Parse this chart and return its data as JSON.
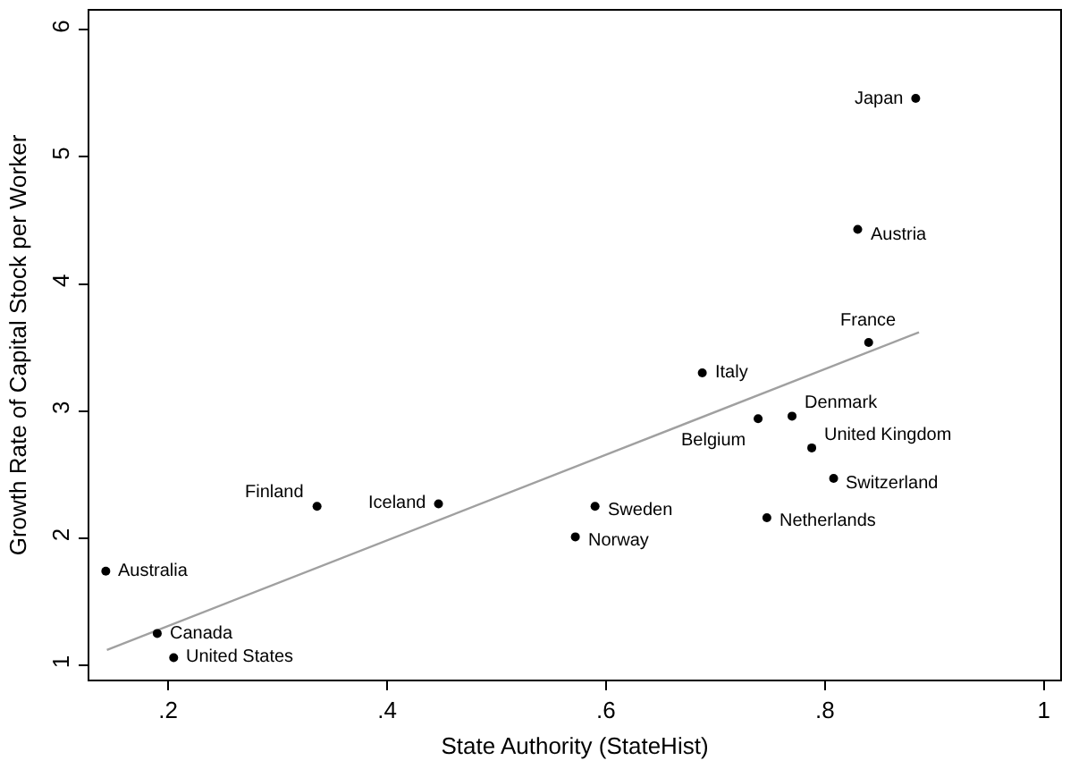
{
  "chart_data": {
    "type": "scatter",
    "xlabel": "State Authority (StateHist)",
    "ylabel": "Growth Rate of Capital Stock per Worker",
    "xlim": [
      0.128,
      1.015
    ],
    "ylim": [
      0.887,
      6.15
    ],
    "xticks": [
      {
        "value": 0.2,
        "label": ".2"
      },
      {
        "value": 0.4,
        "label": ".4"
      },
      {
        "value": 0.6,
        "label": ".6"
      },
      {
        "value": 0.8,
        "label": ".8"
      },
      1
    ],
    "yticks": [
      1,
      2,
      3,
      4,
      5,
      6
    ],
    "grid": false,
    "marker": "circle",
    "series": [
      {
        "color": "#000000",
        "x": [
          0.143,
          0.19,
          0.205,
          0.336,
          0.447,
          0.883,
          0.83,
          0.84,
          0.688,
          0.739,
          0.77,
          0.788,
          0.808,
          0.59,
          0.572,
          0.747
        ],
        "values": [
          1.74,
          1.25,
          1.06,
          2.25,
          2.27,
          5.46,
          4.43,
          3.54,
          3.3,
          2.94,
          2.96,
          2.71,
          2.47,
          2.25,
          2.01,
          2.16
        ]
      },
      {
        "type": "line",
        "color": "#a0a0a0",
        "marker": "none",
        "x": [
          0.144,
          0.886
        ],
        "values": [
          1.12,
          3.62
        ]
      }
    ],
    "annotations": [
      {
        "text": "Australia",
        "x": 0.143,
        "y": 1.74
      },
      {
        "text": "Canada",
        "x": 0.19,
        "y": 1.25
      },
      {
        "text": "United States",
        "x": 0.205,
        "y": 1.06
      },
      {
        "text": "Finland",
        "x": 0.336,
        "y": 2.25
      },
      {
        "text": "Iceland",
        "x": 0.447,
        "y": 2.27
      },
      {
        "text": "Japan",
        "x": 0.883,
        "y": 5.46
      },
      {
        "text": "Austria",
        "x": 0.83,
        "y": 4.43
      },
      {
        "text": "France",
        "x": 0.84,
        "y": 3.54
      },
      {
        "text": "Italy",
        "x": 0.688,
        "y": 3.3
      },
      {
        "text": "Belgium",
        "x": 0.739,
        "y": 2.94
      },
      {
        "text": "Denmark",
        "x": 0.77,
        "y": 2.96
      },
      {
        "text": "United Kingdom",
        "x": 0.788,
        "y": 2.71
      },
      {
        "text": "Switzerland",
        "x": 0.808,
        "y": 2.47
      },
      {
        "text": "Sweden",
        "x": 0.59,
        "y": 2.25
      },
      {
        "text": "Norway",
        "x": 0.572,
        "y": 2.01
      },
      {
        "text": "Netherlands",
        "x": 0.747,
        "y": 2.16
      }
    ]
  }
}
